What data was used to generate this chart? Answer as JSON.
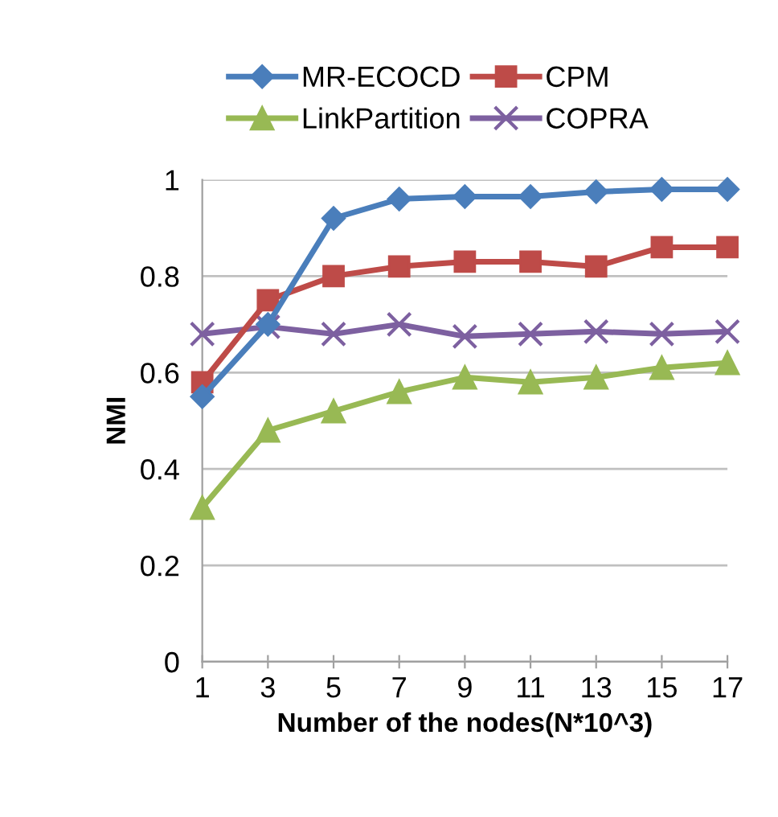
{
  "chart_data": {
    "type": "line",
    "xlabel": "Number of the nodes(N*10^3)",
    "ylabel": "NMI",
    "categories": [
      "1",
      "3",
      "5",
      "7",
      "9",
      "11",
      "13",
      "15",
      "17"
    ],
    "series": [
      {
        "name": "MR-ECOCD",
        "color": "#4a7ebb",
        "marker": "diamond",
        "values": [
          0.55,
          0.7,
          0.92,
          0.96,
          0.965,
          0.965,
          0.975,
          0.98,
          0.98
        ]
      },
      {
        "name": "CPM",
        "color": "#be4b48",
        "marker": "square",
        "values": [
          0.58,
          0.75,
          0.8,
          0.82,
          0.83,
          0.83,
          0.82,
          0.86,
          0.86
        ]
      },
      {
        "name": "LinkPartition",
        "color": "#98b954",
        "marker": "triangle",
        "values": [
          0.32,
          0.48,
          0.52,
          0.56,
          0.59,
          0.58,
          0.59,
          0.61,
          0.62
        ]
      },
      {
        "name": "COPRA",
        "color": "#7d60a0",
        "marker": "cross",
        "values": [
          0.68,
          0.695,
          0.68,
          0.7,
          0.675,
          0.68,
          0.685,
          0.68,
          0.685
        ]
      }
    ],
    "ylim": [
      0,
      1
    ],
    "yticks": [
      0,
      0.2,
      0.4,
      0.6,
      0.8,
      1
    ],
    "grid": "y",
    "legend": "top",
    "line_style": "solid"
  }
}
